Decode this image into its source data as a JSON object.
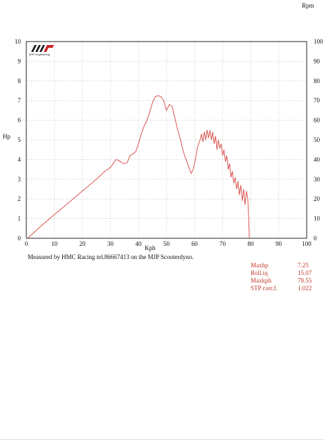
{
  "header": {
    "rpm_label": "Rpm"
  },
  "logo": {
    "mark": "MJP",
    "sub": "MJP engineering"
  },
  "note": "Measured by HMC Racing tel.86667413 on the MJP Scooterdyno.",
  "stats": [
    {
      "label": "Maxhp",
      "value": "7.25"
    },
    {
      "label": "Roll.tq",
      "value": "15.07"
    },
    {
      "label": "Maxkph",
      "value": "79.55"
    },
    {
      "label": "STP corr.f.",
      "value": "1.022"
    }
  ],
  "colors": {
    "curve": "#d9534f",
    "grid": "#bbbbbb",
    "stats": "#c0392b"
  },
  "chart_data": {
    "type": "line",
    "xlabel": "Kph",
    "ylabel": "Hp",
    "y2label": "Rpm",
    "xlim": [
      0,
      100
    ],
    "ylim": [
      0,
      10
    ],
    "y2lim": [
      0,
      100
    ],
    "xticks": [
      0,
      10,
      20,
      30,
      40,
      50,
      60,
      70,
      80,
      90,
      100
    ],
    "yticks": [
      0,
      1,
      2,
      3,
      4,
      5,
      6,
      7,
      8,
      9,
      10
    ],
    "y2ticks": [
      0,
      10,
      20,
      30,
      40,
      50,
      60,
      70,
      80,
      90,
      100
    ],
    "grid": true,
    "series": [
      {
        "x": [
          0.5,
          5,
          10,
          15,
          20,
          25,
          28,
          30,
          31,
          32,
          33,
          34,
          35,
          36,
          37,
          38,
          39,
          40,
          41,
          42,
          43,
          44,
          45,
          46,
          47,
          48,
          49,
          50,
          51,
          52,
          53,
          54,
          55,
          56,
          57,
          58,
          58.8,
          59.5,
          60.3,
          61,
          62,
          62.5,
          63,
          63.5,
          64,
          64.5,
          65,
          65.5,
          66,
          66.5,
          67,
          67.5,
          68,
          68.5,
          69,
          69.5,
          70,
          70.5,
          71,
          71.5,
          72,
          72.5,
          73,
          73.5,
          74,
          74.5,
          75,
          75.5,
          76,
          76.5,
          77,
          77.5,
          78,
          78.5,
          79,
          79.3,
          79.55
        ],
        "y": [
          0.0,
          0.6,
          1.2,
          1.8,
          2.4,
          3.0,
          3.4,
          3.6,
          3.8,
          4.0,
          3.95,
          3.85,
          3.8,
          3.85,
          4.2,
          4.3,
          4.4,
          4.8,
          5.3,
          5.7,
          6.0,
          6.4,
          6.9,
          7.2,
          7.25,
          7.2,
          7.0,
          6.5,
          6.8,
          6.7,
          6.1,
          5.5,
          5.0,
          4.4,
          4.0,
          3.6,
          3.3,
          3.5,
          4.0,
          4.6,
          5.0,
          5.3,
          4.9,
          5.4,
          5.0,
          5.5,
          5.1,
          5.5,
          5.0,
          5.4,
          4.8,
          5.2,
          4.5,
          5.0,
          4.6,
          4.8,
          4.2,
          4.5,
          3.9,
          4.2,
          3.5,
          3.8,
          3.1,
          3.4,
          2.8,
          3.1,
          2.5,
          2.9,
          2.2,
          2.7,
          1.9,
          2.5,
          1.7,
          2.4,
          2.0,
          1.0,
          0.0
        ]
      }
    ]
  }
}
